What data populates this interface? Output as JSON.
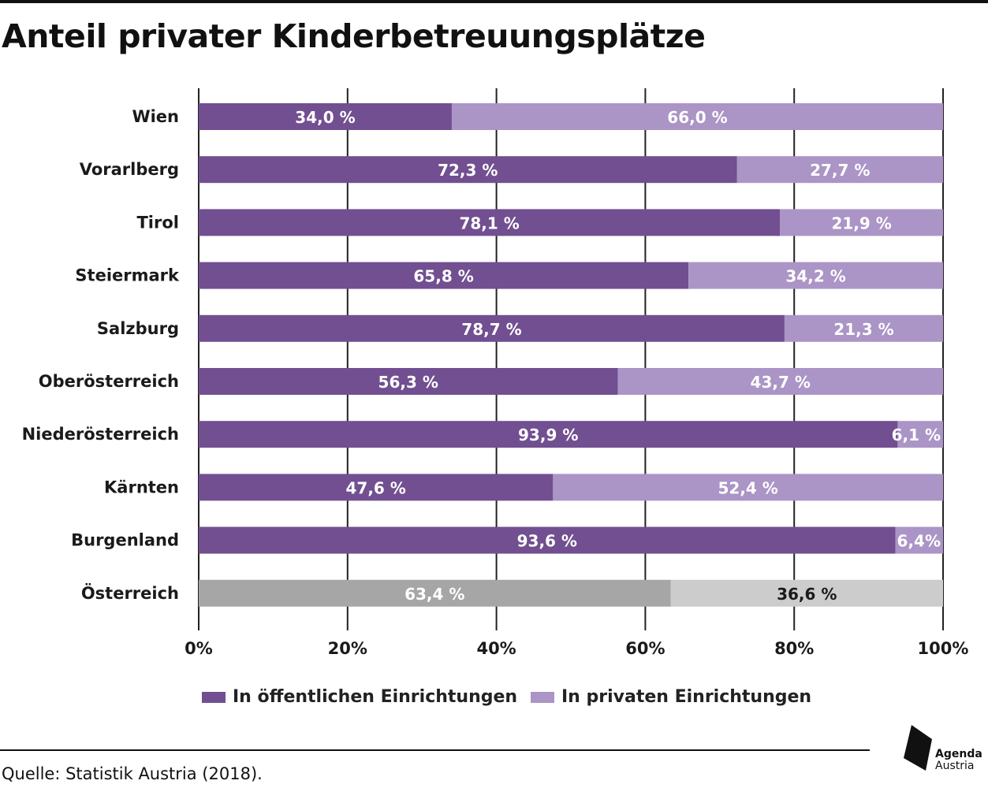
{
  "title": "Anteil privater Kinderbetreuungsplätze",
  "source": "Quelle: Statistik Austria (2018).",
  "logo": {
    "line1": "Agenda",
    "line2": "Austria"
  },
  "colors": {
    "public": "#714f91",
    "private": "#ab94c6",
    "total_public": "#a6a6a6",
    "total_private": "#cccccc",
    "grid": "#222222"
  },
  "legend": {
    "public_label": "In öffentlichen Einrichtungen",
    "private_label": "In privaten Einrichtungen"
  },
  "chart_data": {
    "type": "bar",
    "orientation": "horizontal",
    "stacked": true,
    "xlim": [
      0,
      100
    ],
    "xticks": [
      "0%",
      "20%",
      "40%",
      "60%",
      "80%",
      "100%"
    ],
    "grid": true,
    "legend_position": "bottom",
    "categories": [
      "Wien",
      "Vorarlberg",
      "Tirol",
      "Steiermark",
      "Salzburg",
      "Oberösterreich",
      "Niederösterreich",
      "Kärnten",
      "Burgenland",
      "Österreich"
    ],
    "series": [
      {
        "name": "In öffentlichen Einrichtungen",
        "values": [
          34.0,
          72.3,
          78.1,
          65.8,
          78.7,
          56.3,
          93.9,
          47.6,
          93.6,
          63.4
        ],
        "labels": [
          "34,0 %",
          "72,3 %",
          "78,1 %",
          "65,8 %",
          "78,7 %",
          "56,3 %",
          "93,9 %",
          "47,6 %",
          "93,6 %",
          "63,4 %"
        ]
      },
      {
        "name": "In privaten Einrichtungen",
        "values": [
          66.0,
          27.7,
          21.9,
          34.2,
          21.3,
          43.7,
          6.1,
          52.4,
          6.4,
          36.6
        ],
        "labels": [
          "66,0 %",
          "27,7 %",
          "21,9 %",
          "34,2 %",
          "21,3 %",
          "43,7 %",
          "6,1 %",
          "52,4 %",
          "6,4%",
          "36,6 %"
        ]
      }
    ]
  }
}
